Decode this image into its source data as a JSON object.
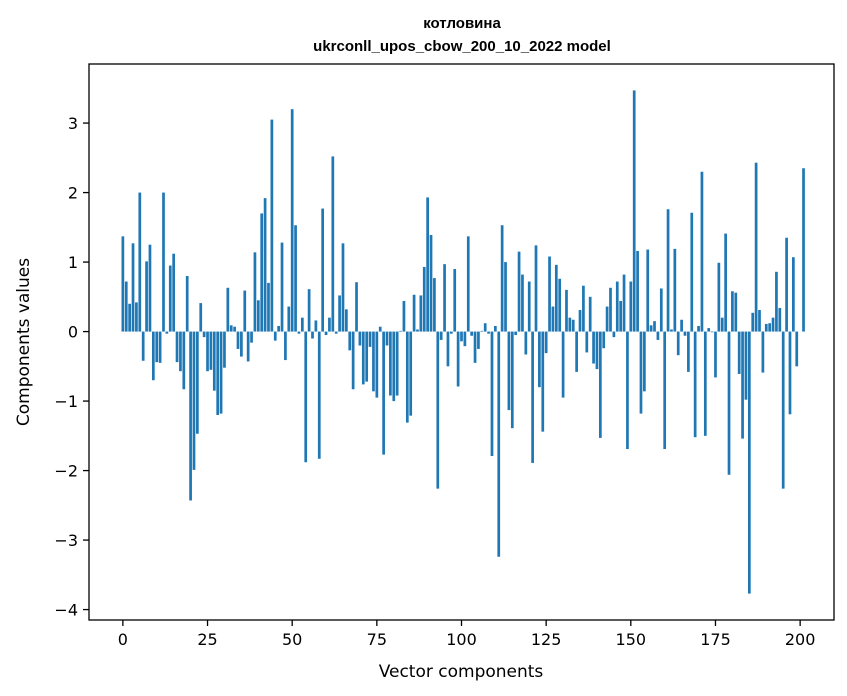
{
  "chart_data": {
    "type": "bar",
    "title": "котловина",
    "subtitle": "ukrconll_upos_cbow_200_10_2022 model",
    "xlabel": "Vector components",
    "ylabel": "Components values",
    "xlim": [
      -10,
      210
    ],
    "ylim": [
      -4.15,
      3.85
    ],
    "xticks": [
      0,
      25,
      50,
      75,
      100,
      125,
      150,
      175,
      200
    ],
    "yticks": [
      -4,
      -3,
      -2,
      -1,
      0,
      1,
      2,
      3
    ],
    "bar_color": "#1f77b4",
    "grid": false,
    "values": [
      1.37,
      0.72,
      0.4,
      1.27,
      0.42,
      2.0,
      -0.42,
      1.01,
      1.25,
      -0.7,
      -0.44,
      -0.45,
      2.0,
      -0.03,
      0.95,
      1.12,
      -0.44,
      -0.57,
      -0.83,
      0.8,
      -2.43,
      -1.99,
      -1.47,
      0.41,
      -0.08,
      -0.57,
      -0.55,
      -0.85,
      -1.2,
      -1.18,
      -0.52,
      0.63,
      0.09,
      0.07,
      -0.25,
      -0.36,
      0.59,
      -0.43,
      -0.16,
      1.14,
      0.45,
      1.7,
      1.92,
      0.7,
      3.05,
      -0.13,
      0.08,
      1.28,
      -0.41,
      0.36,
      3.2,
      1.53,
      -0.03,
      0.2,
      -1.88,
      0.61,
      -0.1,
      0.16,
      -1.83,
      1.77,
      -0.05,
      0.2,
      2.52,
      -0.03,
      0.52,
      1.27,
      0.32,
      -0.27,
      -0.83,
      0.71,
      -0.2,
      -0.76,
      -0.72,
      -0.22,
      -0.86,
      -0.95,
      0.07,
      -1.77,
      -0.2,
      -0.92,
      -1.0,
      -0.92,
      0.01,
      0.44,
      -1.31,
      -1.21,
      0.53,
      0.03,
      0.52,
      0.93,
      1.93,
      1.39,
      0.77,
      -2.26,
      -0.12,
      0.97,
      -0.5,
      -0.03,
      0.9,
      -0.79,
      -0.14,
      -0.21,
      1.37,
      -0.06,
      -0.45,
      -0.25,
      0.01,
      0.12,
      -0.03,
      -1.79,
      0.08,
      -3.24,
      1.53,
      1.0,
      -1.13,
      -1.39,
      -0.05,
      1.15,
      0.82,
      -0.33,
      0.72,
      -1.89,
      1.24,
      -0.8,
      -1.44,
      -0.31,
      1.08,
      0.36,
      0.96,
      0.76,
      -0.95,
      0.6,
      0.2,
      0.17,
      -0.58,
      0.31,
      0.66,
      -0.3,
      0.5,
      -0.46,
      -0.54,
      -1.53,
      -0.24,
      0.36,
      0.63,
      -0.08,
      0.72,
      0.44,
      0.82,
      -1.69,
      0.72,
      3.47,
      1.16,
      -1.18,
      -0.86,
      1.18,
      0.09,
      0.15,
      -0.12,
      0.62,
      -1.69,
      1.76,
      0.03,
      1.19,
      -0.34,
      0.17,
      -0.06,
      -0.58,
      1.71,
      -1.52,
      0.08,
      2.3,
      -1.5,
      0.05,
      -0.01,
      -0.66,
      0.99,
      0.2,
      1.41,
      -2.06,
      0.58,
      0.56,
      -0.61,
      -1.54,
      -0.98,
      -3.77,
      0.27,
      2.43,
      0.31,
      -0.59,
      0.11,
      0.12,
      0.2,
      0.86,
      0.34,
      -2.26,
      1.35,
      -1.19,
      1.07,
      -0.5,
      0.0,
      2.35
    ]
  }
}
